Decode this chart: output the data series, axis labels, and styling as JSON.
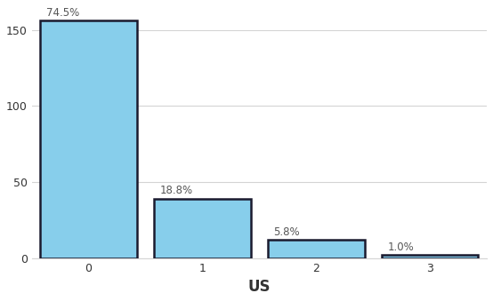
{
  "categories": [
    0,
    1,
    2,
    3
  ],
  "values": [
    156,
    39,
    12,
    2
  ],
  "labels": [
    "74.5%",
    "18.8%",
    "5.8%",
    "1.0%"
  ],
  "bar_color": "#87CEEB",
  "bar_edgecolor": "#1a1a2e",
  "bar_edgewidth": 1.8,
  "bar_width": 0.85,
  "xlabel": "US",
  "xlabel_fontsize": 12,
  "xlabel_fontweight": "bold",
  "ylim": [
    0,
    165
  ],
  "yticks": [
    0,
    50,
    100,
    150
  ],
  "xticks": [
    0,
    1,
    2,
    3
  ],
  "grid_color": "#d4d4d4",
  "background_color": "#ffffff",
  "label_fontsize": 8.5,
  "tick_fontsize": 9,
  "label_offsets": [
    1.5,
    1.5,
    1.5,
    1.5
  ]
}
